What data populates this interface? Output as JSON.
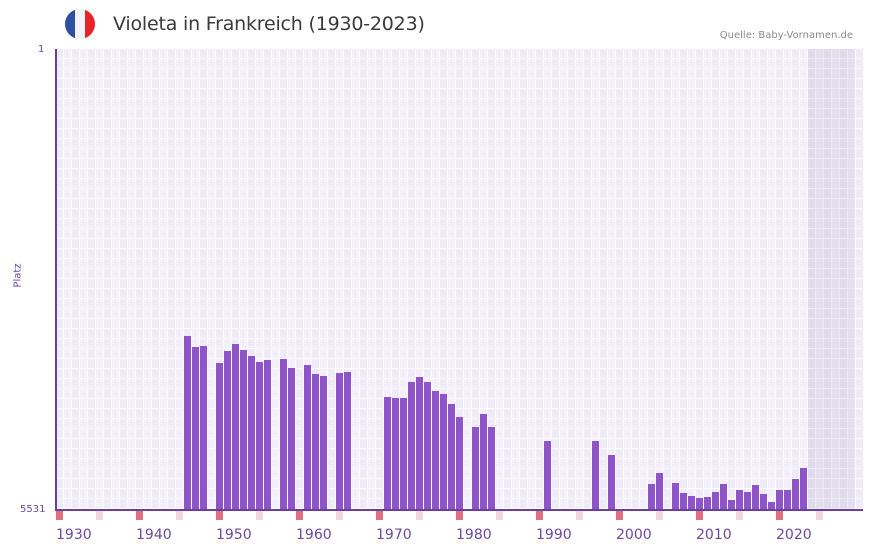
{
  "header": {
    "title": "Violeta in Frankreich (1930-2023)",
    "source": "Quelle: Baby-Vornamen.de",
    "flag_icon": "france-flag-icon",
    "flag_colors": [
      "#2f4fa0",
      "#f4f4f6",
      "#e8232c"
    ]
  },
  "colors": {
    "bar": "#8e54c8",
    "axis": "#6a3fa0",
    "decade_marker": "#e07079",
    "half_decade_marker": "#f4d6de",
    "future_shade": "rgba(180,170,200,0.25)"
  },
  "chart_data": {
    "type": "bar",
    "title": "Violeta in Frankreich (1930-2023)",
    "xlabel": "",
    "ylabel": "Platz",
    "y_inverted": true,
    "ylim": [
      1,
      5531
    ],
    "y_ticks": [
      "1",
      "5531"
    ],
    "x_range": [
      1930,
      2029
    ],
    "x_ticks": [
      "1930",
      "1940",
      "1950",
      "1960",
      "1970",
      "1980",
      "1990",
      "2000",
      "2010",
      "2020"
    ],
    "grid": true,
    "legend": null,
    "future_shaded_from": 2024,
    "series": [
      {
        "name": "Violeta",
        "points": [
          {
            "year": 1946,
            "rank": 3438
          },
          {
            "year": 1947,
            "rank": 3571
          },
          {
            "year": 1948,
            "rank": 3559
          },
          {
            "year": 1950,
            "rank": 3763
          },
          {
            "year": 1951,
            "rank": 3619
          },
          {
            "year": 1952,
            "rank": 3535
          },
          {
            "year": 1953,
            "rank": 3607
          },
          {
            "year": 1954,
            "rank": 3679
          },
          {
            "year": 1955,
            "rank": 3751
          },
          {
            "year": 1956,
            "rank": 3727
          },
          {
            "year": 1958,
            "rank": 3715
          },
          {
            "year": 1959,
            "rank": 3823
          },
          {
            "year": 1961,
            "rank": 3787
          },
          {
            "year": 1962,
            "rank": 3895
          },
          {
            "year": 1963,
            "rank": 3919
          },
          {
            "year": 1965,
            "rank": 3883
          },
          {
            "year": 1966,
            "rank": 3871
          },
          {
            "year": 1971,
            "rank": 4172
          },
          {
            "year": 1972,
            "rank": 4184
          },
          {
            "year": 1973,
            "rank": 4184
          },
          {
            "year": 1974,
            "rank": 3992
          },
          {
            "year": 1975,
            "rank": 3932
          },
          {
            "year": 1976,
            "rank": 3992
          },
          {
            "year": 1977,
            "rank": 4100
          },
          {
            "year": 1978,
            "rank": 4136
          },
          {
            "year": 1979,
            "rank": 4256
          },
          {
            "year": 1980,
            "rank": 4413
          },
          {
            "year": 1982,
            "rank": 4533
          },
          {
            "year": 1983,
            "rank": 4377
          },
          {
            "year": 1984,
            "rank": 4533
          },
          {
            "year": 1991,
            "rank": 4701
          },
          {
            "year": 1997,
            "rank": 4701
          },
          {
            "year": 1999,
            "rank": 4869
          },
          {
            "year": 2004,
            "rank": 5218
          },
          {
            "year": 2005,
            "rank": 5085
          },
          {
            "year": 2007,
            "rank": 5206
          },
          {
            "year": 2008,
            "rank": 5326
          },
          {
            "year": 2009,
            "rank": 5362
          },
          {
            "year": 2010,
            "rank": 5387
          },
          {
            "year": 2011,
            "rank": 5375
          },
          {
            "year": 2012,
            "rank": 5314
          },
          {
            "year": 2013,
            "rank": 5218
          },
          {
            "year": 2014,
            "rank": 5411
          },
          {
            "year": 2015,
            "rank": 5290
          },
          {
            "year": 2016,
            "rank": 5314
          },
          {
            "year": 2017,
            "rank": 5230
          },
          {
            "year": 2018,
            "rank": 5338
          },
          {
            "year": 2019,
            "rank": 5435
          },
          {
            "year": 2020,
            "rank": 5290
          },
          {
            "year": 2021,
            "rank": 5290
          },
          {
            "year": 2022,
            "rank": 5158
          },
          {
            "year": 2023,
            "rank": 5025
          }
        ]
      }
    ]
  }
}
